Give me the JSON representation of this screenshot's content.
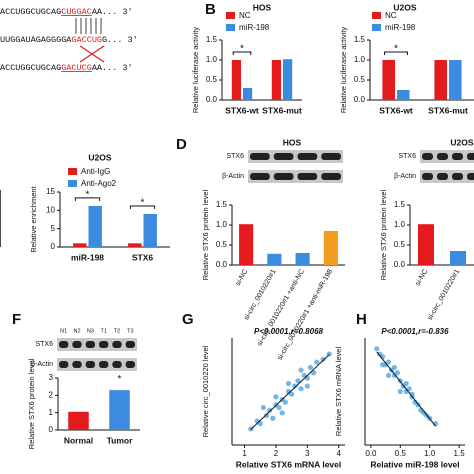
{
  "panel_letters": [
    "B",
    "D",
    "F",
    "G",
    "H"
  ],
  "sequences": [
    [
      "ACCUGGCUGCAG",
      "CUGGAC",
      "AA... 3'"
    ],
    [
      "UUGGAUAGAGGGGA",
      "GACCUG",
      "G... 3'"
    ],
    [
      "ACCUGGCUGCAG",
      "GACUCG",
      "AA... 3'"
    ]
  ],
  "blots": [
    {
      "title": "HOS",
      "rows": [
        "STX6",
        "β-Actin"
      ]
    },
    {
      "title": "U2OS",
      "rows": [
        "STX6",
        "β-Actin"
      ]
    },
    {
      "lanes": [
        "N1",
        "N2",
        "N3",
        "T1",
        "T2",
        "T3"
      ],
      "rows": [
        "STX6",
        "β-Actin"
      ]
    }
  ],
  "chart_data": [
    {
      "type": "bar",
      "title": "HOS",
      "y_label": "Relative luciferase activity",
      "categories": [
        "STX6-wt",
        "STX6-mut"
      ],
      "series": [
        {
          "name": "NC",
          "color": "#e41a1c",
          "values": [
            1.0,
            1.0
          ]
        },
        {
          "name": "miR-198",
          "color": "#3b8be0",
          "values": [
            0.3,
            1.02
          ]
        }
      ],
      "significance": [
        "*",
        null
      ],
      "ylim": [
        0,
        1.5
      ],
      "yticks": [
        {
          "value": 0,
          "label": "0.0"
        },
        {
          "value": 0.5,
          "label": "0.5"
        },
        {
          "value": 1,
          "label": "1.0"
        },
        {
          "value": 1.5,
          "label": "1.5"
        }
      ]
    },
    {
      "type": "bar",
      "title": "U2OS",
      "y_label": "Relative luciferase activity",
      "categories": [
        "STX6-wt",
        "STX6-mut"
      ],
      "series": [
        {
          "name": "NC",
          "color": "#e41a1c",
          "values": [
            1.0,
            1.0
          ]
        },
        {
          "name": "miR-198",
          "color": "#3b8be0",
          "values": [
            0.25,
            1.0
          ]
        }
      ],
      "significance": [
        "*",
        null
      ],
      "ylim": [
        0,
        1.5
      ],
      "yticks": [
        {
          "value": 0,
          "label": "0.0"
        },
        {
          "value": 0.5,
          "label": "0.5"
        },
        {
          "value": 1,
          "label": "1.0"
        },
        {
          "value": 1.5,
          "label": "1.5"
        }
      ]
    },
    {
      "type": "bar",
      "title": "U2OS",
      "y_label": "Relative enrichment",
      "categories": [
        "miR-198",
        "STX6"
      ],
      "series": [
        {
          "name": "Anti-IgG",
          "color": "#e41a1c",
          "values": [
            1,
            1
          ]
        },
        {
          "name": "Anti-Ago2",
          "color": "#3b8be0",
          "values": [
            11.2,
            9
          ]
        }
      ],
      "significance": [
        "*",
        "*"
      ],
      "ylim": [
        0,
        15
      ],
      "yticks": [
        0,
        5,
        10,
        15
      ]
    },
    {
      "type": "bar",
      "y_label": "Relative STX6 protein level",
      "categories": [
        "si-NC",
        "si-circ_0010220#1",
        "si-circ_0010220#1 +anti-NC",
        "si-circ_0010220#1 +anti-miR-198"
      ],
      "values": [
        1.02,
        0.28,
        0.3,
        0.85
      ],
      "colors": [
        "#e41a1c",
        "#3b8be0",
        "#3b8be0",
        "#f39c1f"
      ],
      "ylim": [
        0,
        1.5
      ],
      "yticks": [
        {
          "value": 0,
          "label": "0.0"
        },
        {
          "value": 0.5,
          "label": "0.5"
        },
        {
          "value": 1,
          "label": "1.0"
        },
        {
          "value": 1.5,
          "label": "1.5"
        }
      ]
    },
    {
      "type": "bar",
      "y_label": "Relative STX6 protein level",
      "categories": [
        "si-NC",
        "si-circ_0010220#1"
      ],
      "values": [
        1.02,
        0.35
      ],
      "colors": [
        "#e41a1c",
        "#3b8be0"
      ],
      "ylim": [
        0,
        1.5
      ],
      "yticks": [
        {
          "value": 0,
          "label": "0.0"
        },
        {
          "value": 0.5,
          "label": "0.5"
        },
        {
          "value": 1,
          "label": "1.0"
        },
        {
          "value": 1.5,
          "label": "1.5"
        }
      ]
    },
    {
      "type": "bar",
      "y_label": "Relative STX6 protein level",
      "categories": [
        "Normal",
        "Tumor"
      ],
      "values": [
        1.05,
        2.3
      ],
      "colors": [
        "#e41a1c",
        "#3b8be0"
      ],
      "significance": [
        null,
        "*"
      ],
      "ylim": [
        0,
        3
      ],
      "yticks": [
        0,
        1,
        2,
        3
      ]
    },
    {
      "type": "scatter",
      "annotation": "P<0.0001,r=0.8068",
      "x_label": "Relative STX6 mRNA level",
      "y_label": "Relative circ_0010220 level",
      "color": "#5aa9e6",
      "x": [
        1.2,
        1.4,
        1.5,
        1.7,
        1.8,
        1.9,
        2.0,
        2.1,
        2.2,
        2.3,
        2.4,
        2.5,
        2.6,
        2.7,
        2.8,
        2.9,
        3.0,
        3.1,
        3.2,
        3.3,
        3.5,
        3.7,
        1.6,
        2.0,
        2.4,
        2.8,
        3.0,
        2.2
      ],
      "values": [
        0.6,
        0.9,
        0.8,
        1.1,
        1.3,
        1.0,
        1.5,
        1.4,
        1.7,
        1.6,
        2.0,
        1.9,
        2.2,
        2.4,
        2.1,
        2.6,
        2.5,
        2.9,
        2.7,
        3.1,
        3.2,
        3.4,
        1.4,
        1.8,
        2.3,
        2.8,
        2.2,
        1.2
      ],
      "xlim": [
        0.6,
        4.2
      ],
      "xticks": [
        1,
        2,
        3,
        4
      ],
      "ylim": [
        0,
        4
      ]
    },
    {
      "type": "scatter",
      "annotation": "P<0.0001,r=-0.836",
      "x_label": "Relative miR-198 level",
      "y_label": "Relative STX6 mRNA level",
      "color": "#5aa9e6",
      "x": [
        0.1,
        0.15,
        0.2,
        0.25,
        0.3,
        0.35,
        0.4,
        0.45,
        0.5,
        0.55,
        0.6,
        0.65,
        0.7,
        0.75,
        0.8,
        0.85,
        0.9,
        1.0,
        1.1,
        0.2,
        0.3,
        0.5,
        0.6,
        0.4,
        0.7,
        0.95
      ],
      "values": [
        3.6,
        3.4,
        3.3,
        3.0,
        3.1,
        2.8,
        2.6,
        2.7,
        2.4,
        2.2,
        2.0,
        2.1,
        1.8,
        1.6,
        1.5,
        1.3,
        1.2,
        1.0,
        0.8,
        3.0,
        2.6,
        2.0,
        2.3,
        2.9,
        1.9,
        1.1
      ],
      "xlim": [
        -0.1,
        1.6
      ],
      "xticks": [
        {
          "value": 0,
          "label": "0.0"
        },
        {
          "value": 0.5,
          "label": "0.5"
        },
        {
          "value": 1,
          "label": "1.0"
        },
        {
          "value": 1.5,
          "label": "1.5"
        }
      ],
      "ylim": [
        0,
        4
      ]
    }
  ]
}
